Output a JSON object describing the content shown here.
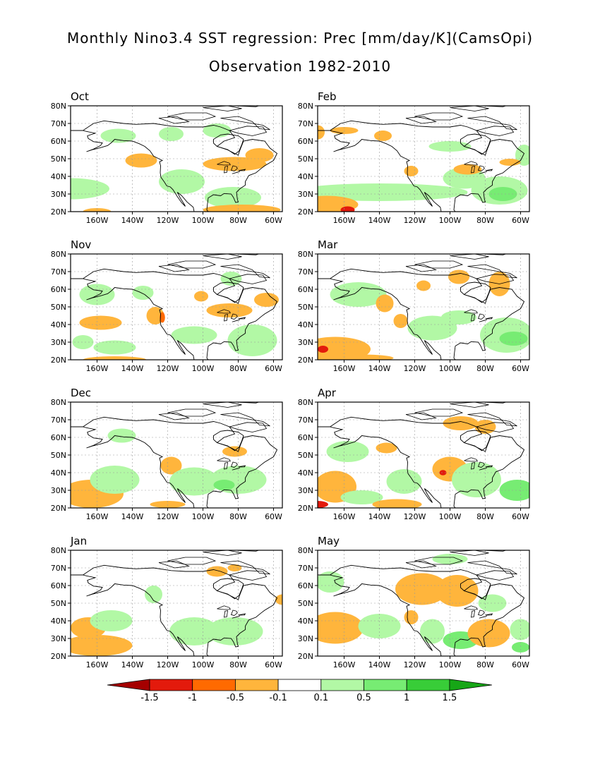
{
  "figure": {
    "title": "Monthly Nino3.4 SST regression: Prec [mm/day/K](CamsOpi)",
    "subtitle": "Observation 1982-2010"
  },
  "panels": [
    {
      "name": "Oct"
    },
    {
      "name": "Feb"
    },
    {
      "name": "Nov"
    },
    {
      "name": "Mar"
    },
    {
      "name": "Dec"
    },
    {
      "name": "Apr"
    },
    {
      "name": "Jan"
    },
    {
      "name": "May"
    }
  ],
  "axes": {
    "lon_ticks": [
      "160W",
      "140W",
      "120W",
      "100W",
      "80W",
      "60W"
    ],
    "lat_ticks": [
      "80N",
      "70N",
      "60N",
      "50N",
      "40N",
      "30N",
      "20N"
    ],
    "lon_range": [
      -175,
      -55
    ],
    "lat_range": [
      20,
      80
    ]
  },
  "colorbar": {
    "labels": [
      "-1.5",
      "-1",
      "-0.5",
      "-0.1",
      "0.1",
      "0.5",
      "1",
      "1.5"
    ],
    "colors": [
      "#a50000",
      "#e31a0c",
      "#ff6a00",
      "#ffb53c",
      "#ffffff",
      "#b2f8a5",
      "#77ec73",
      "#38cd38",
      "#16a616"
    ]
  },
  "colors": {
    "neg_light": "#ffb53c",
    "neg_mid": "#ff6a00",
    "neg_strong": "#e31a0c",
    "pos_light": "#b2f8a5",
    "pos_mid": "#77ec73",
    "pos_strong": "#38cd38"
  }
}
